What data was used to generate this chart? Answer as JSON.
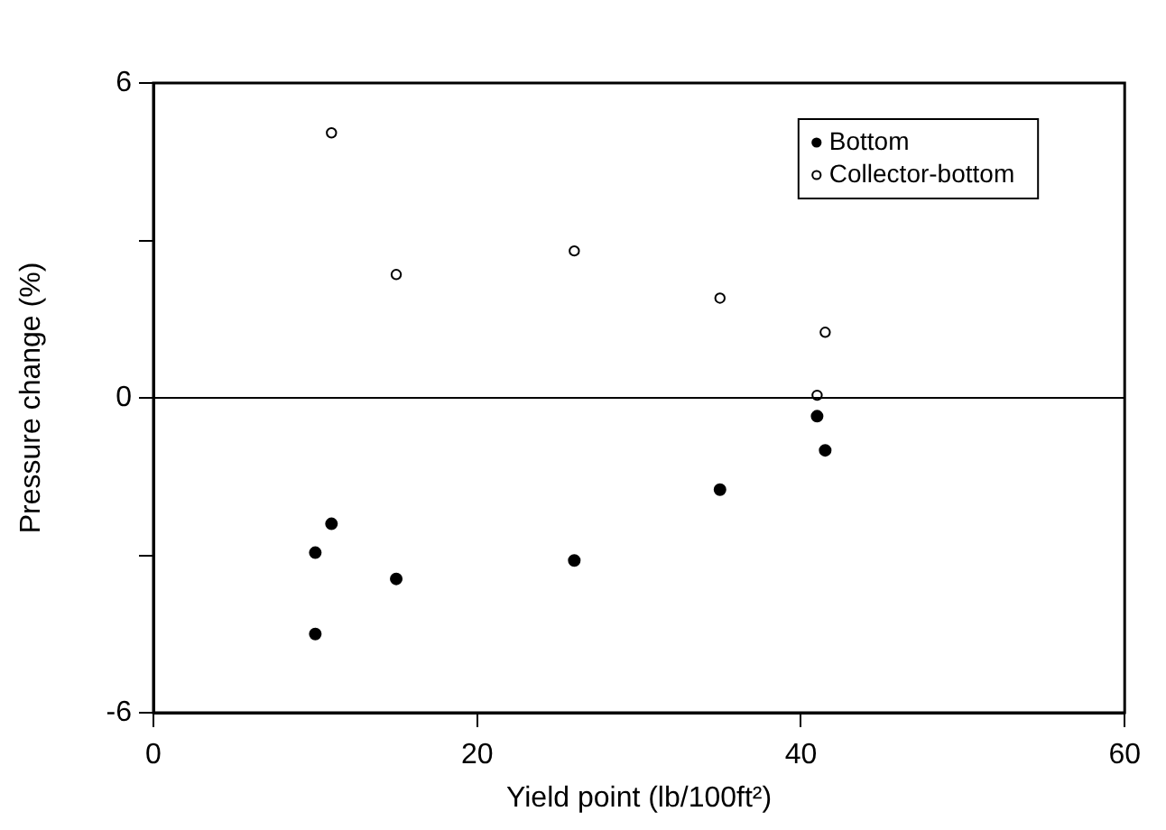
{
  "chart_data": {
    "type": "scatter",
    "xlabel": "Yield point (lb/100ft²)",
    "ylabel": "Pressure change (%)",
    "xlim": [
      0,
      60
    ],
    "xticks": [
      0,
      20,
      40,
      60
    ],
    "ylim": [
      -6,
      6
    ],
    "yticks": [
      -6,
      {
        "value": -3,
        "label": null
      },
      0,
      {
        "value": 3,
        "label": null
      },
      6
    ],
    "grid": false,
    "legend": "top right",
    "marker": "circle",
    "ref_lines": [
      {
        "axis": "y",
        "value": 0,
        "color": "#000000"
      }
    ],
    "series": [
      {
        "name": "Bottom",
        "color": "#000000",
        "x": [
          10,
          11,
          15,
          26,
          35,
          41,
          41.5,
          10
        ],
        "values": [
          -2.95,
          -2.4,
          -3.45,
          -3.1,
          -1.75,
          -0.35,
          -1.0,
          -4.5
        ]
      },
      {
        "name": "Collector-bottom",
        "color": "#000000",
        "x": [
          11,
          15,
          26,
          35,
          41.5,
          41
        ],
        "values": [
          5.05,
          2.35,
          2.8,
          1.9,
          1.25,
          0.05
        ]
      }
    ]
  }
}
